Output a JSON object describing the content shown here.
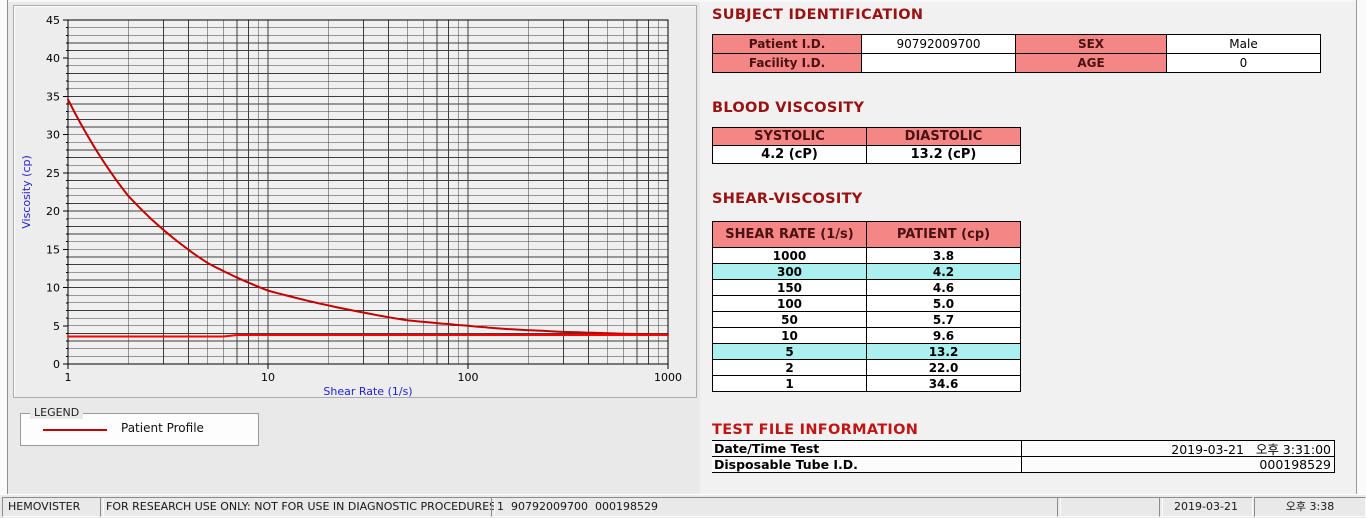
{
  "colors": {
    "title_red": "#991111",
    "test_title_red": "#C01515",
    "header_pink": "#F48686",
    "header_text": "#4A1212",
    "highlight_cyan": "#ABEFEF",
    "axis_blue": "#2222CC",
    "curve_red": "#C40000",
    "baseline_red": "#FF0000"
  },
  "chart_data": {
    "type": "line",
    "title": "",
    "xlabel": "Shear Rate (1/s)",
    "ylabel": "Viscosity (cp)",
    "x_scale": "log",
    "xlim": [
      1,
      1000
    ],
    "ylim": [
      0,
      45
    ],
    "x_ticks": [
      1,
      10,
      100,
      1000
    ],
    "y_ticks": [
      0,
      5,
      10,
      15,
      20,
      25,
      30,
      35,
      40,
      45
    ],
    "y_minor_step": 1,
    "grid": "on",
    "legend_position": "separate LEGEND box below chart",
    "series": [
      {
        "name": "Patient Profile",
        "color": "#C40000",
        "interpolation": "log-log",
        "x": [
          1,
          2,
          5,
          10,
          50,
          100,
          150,
          300,
          1000
        ],
        "y": [
          34.6,
          22.0,
          13.2,
          9.6,
          5.7,
          5.0,
          4.6,
          4.2,
          3.8
        ]
      },
      {
        "name": "high-shear asymptote line",
        "color": "#FF0000",
        "interpolation": "linear",
        "x": [
          1,
          6,
          7,
          1000
        ],
        "y": [
          3.6,
          3.6,
          3.8,
          3.8
        ]
      }
    ]
  },
  "legend": {
    "title": "LEGEND",
    "items": [
      {
        "label": "Patient Profile",
        "color": "#C40000"
      }
    ]
  },
  "subject_identification": {
    "title": "SUBJECT IDENTIFICATION",
    "patient_id_label": "Patient I.D.",
    "patient_id_value": "90792009700",
    "sex_label": "SEX",
    "sex_value": "Male",
    "facility_id_label": "Facility I.D.",
    "facility_id_value": "",
    "age_label": "AGE",
    "age_value": "0"
  },
  "blood_viscosity": {
    "title": "BLOOD VISCOSITY",
    "systolic_label": "SYSTOLIC",
    "systolic_value": "4.2 (cP)",
    "diastolic_label": "DIASTOLIC",
    "diastolic_value": "13.2 (cP)"
  },
  "shear_viscosity": {
    "title": "SHEAR-VISCOSITY",
    "col_rate": "SHEAR RATE (1/s)",
    "col_patient": "PATIENT (cp)",
    "rows": [
      {
        "rate": "1000",
        "value": "3.8",
        "highlight": false
      },
      {
        "rate": "300",
        "value": "4.2",
        "highlight": true
      },
      {
        "rate": "150",
        "value": "4.6",
        "highlight": false
      },
      {
        "rate": "100",
        "value": "5.0",
        "highlight": false
      },
      {
        "rate": "50",
        "value": "5.7",
        "highlight": false
      },
      {
        "rate": "10",
        "value": "9.6",
        "highlight": false
      },
      {
        "rate": "5",
        "value": "13.2",
        "highlight": true
      },
      {
        "rate": "2",
        "value": "22.0",
        "highlight": false
      },
      {
        "rate": "1",
        "value": "34.6",
        "highlight": false
      }
    ]
  },
  "test_file_information": {
    "title": "TEST FILE INFORMATION",
    "date_label": "Date/Time Test",
    "date_value": "2019-03-21   오후 3:31:00",
    "tube_label": "Disposable Tube I.D.",
    "tube_value": "000198529"
  },
  "status_bar": {
    "app_name": "HEMOVISTER",
    "notice": "FOR RESEARCH USE ONLY: NOT FOR USE IN DIAGNOSTIC PROCEDURES",
    "record_info": "1  90792009700  000198529",
    "spare": "",
    "date": "2019-03-21",
    "time": "오후 3:38"
  }
}
